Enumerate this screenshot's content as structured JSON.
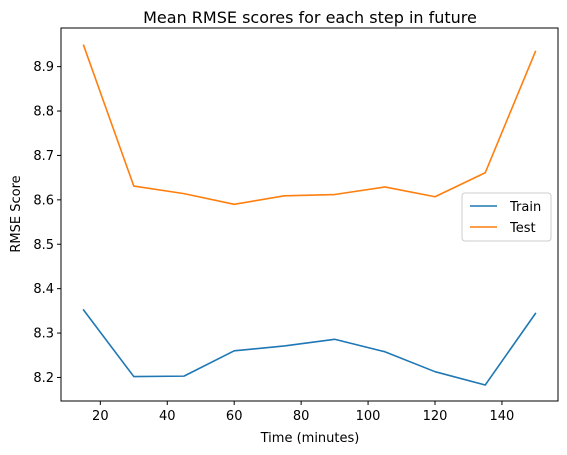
{
  "chart_data": {
    "type": "line",
    "title": "Mean RMSE scores for each step in future",
    "xlabel": "Time (minutes)",
    "ylabel": "RMSE Score",
    "x": [
      15,
      30,
      45,
      60,
      75,
      90,
      105,
      120,
      135,
      150
    ],
    "xlim": [
      8.25,
      156.75
    ],
    "ylim": [
      8.147,
      8.987
    ],
    "xticks": [
      20,
      40,
      60,
      80,
      100,
      120,
      140
    ],
    "yticks": [
      8.2,
      8.3,
      8.4,
      8.5,
      8.6,
      8.7,
      8.8,
      8.9
    ],
    "grid": false,
    "legend_position": "center-right",
    "series": [
      {
        "name": "Train",
        "color": "#1f77b4",
        "values": [
          8.352,
          8.202,
          8.203,
          8.26,
          8.271,
          8.286,
          8.258,
          8.213,
          8.183,
          8.344
        ]
      },
      {
        "name": "Test",
        "color": "#ff7f0e",
        "values": [
          8.948,
          8.631,
          8.614,
          8.59,
          8.609,
          8.612,
          8.629,
          8.607,
          8.661,
          8.934
        ]
      }
    ]
  }
}
